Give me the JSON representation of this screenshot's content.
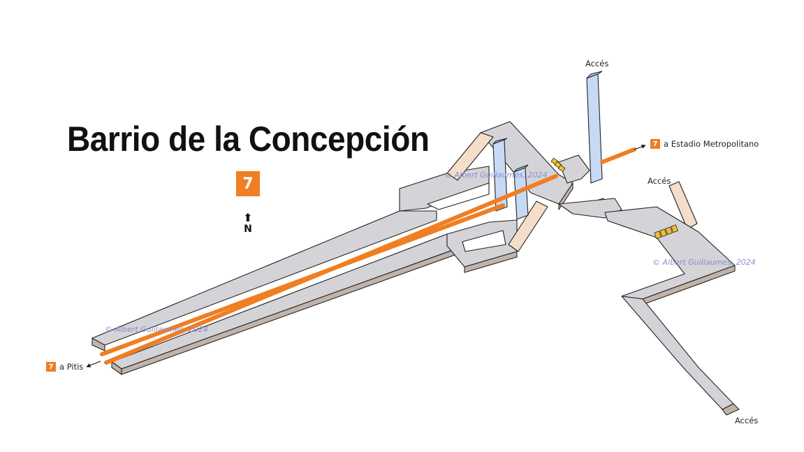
{
  "station": {
    "title": "Barrio de la Concepción",
    "line_badge": "7",
    "line_color": "#f07e22",
    "north_label": "N"
  },
  "destinations": [
    {
      "badge": "7",
      "label": "a Estadio Metropolitano"
    },
    {
      "badge": "7",
      "label": "a Pitis"
    }
  ],
  "accesses": [
    "Accés",
    "Accés",
    "Accés"
  ],
  "watermarks": [
    "© Albert Guillaumes, 2024",
    "© Albert Guillaumes, 2024",
    "© Albert Guillaumes, 2024"
  ],
  "colors": {
    "floor": "#d3d3d8",
    "wall": "#c2b3aa",
    "stairs": "#f4ddc9",
    "elevator": "#c7daf5",
    "gates": "#f2c02a",
    "track": "#f07e22"
  }
}
